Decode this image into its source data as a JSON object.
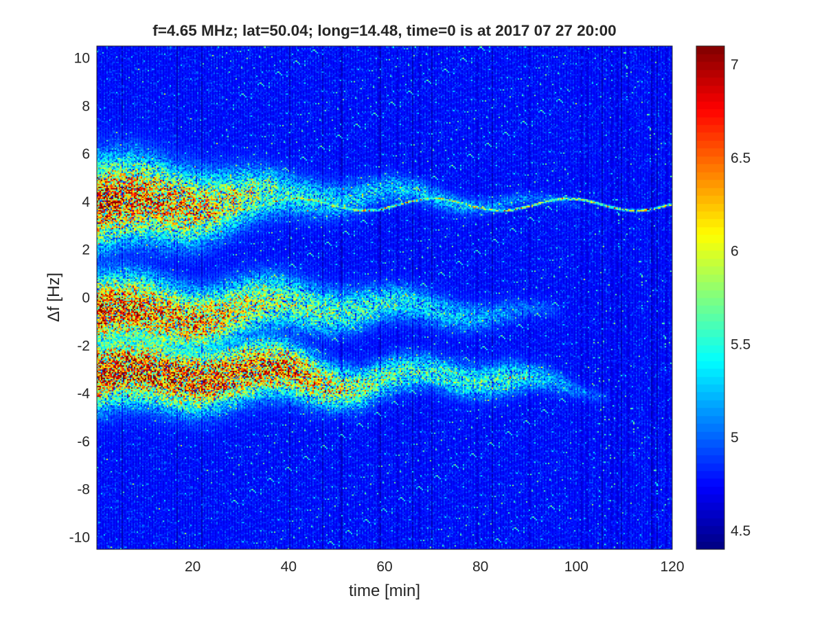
{
  "chart_data": {
    "type": "heatmap",
    "title": "f=4.65 MHz;  lat=50.04; long=14.48, time=0 is at 2017 07 27 20:00",
    "xlabel": "time [min]",
    "ylabel": "Δf [Hz]",
    "xlim": [
      0,
      120
    ],
    "ylim": [
      -10.5,
      10.5
    ],
    "xticks": [
      20,
      40,
      60,
      80,
      100,
      120
    ],
    "xtick_labels": [
      "20",
      "40",
      "60",
      "80",
      "100",
      "120"
    ],
    "yticks": [
      -10,
      -8,
      -6,
      -4,
      -2,
      0,
      2,
      4,
      6,
      8,
      10
    ],
    "ytick_labels": [
      "-10",
      "-8",
      "-6",
      "-4",
      "-2",
      "0",
      "2",
      "4",
      "6",
      "8",
      "10"
    ],
    "colormap": "jet",
    "colorbar": {
      "clim": [
        4.4,
        7.1
      ],
      "ticks": [
        4.5,
        5,
        5.5,
        6,
        6.5,
        7
      ],
      "tick_labels": [
        "4.5",
        "5",
        "5.5",
        "6",
        "6.5",
        "7"
      ]
    },
    "background_level": 4.75,
    "features": [
      {
        "name": "upper band",
        "t_start": 0,
        "t_end": 100,
        "f_center": [
          [
            0,
            3.9
          ],
          [
            20,
            4.0
          ],
          [
            40,
            4.2
          ],
          [
            60,
            4.4
          ],
          [
            80,
            4.0
          ],
          [
            100,
            3.9
          ]
        ],
        "width_hz": [
          [
            0,
            1.9
          ],
          [
            20,
            1.6
          ],
          [
            40,
            1.0
          ],
          [
            60,
            0.7
          ],
          [
            80,
            0.4
          ],
          [
            100,
            0.2
          ]
        ],
        "peak": [
          [
            0,
            7.0
          ],
          [
            20,
            6.5
          ],
          [
            40,
            5.6
          ],
          [
            60,
            5.4
          ],
          [
            80,
            5.3
          ],
          [
            100,
            5.0
          ]
        ]
      },
      {
        "name": "carrier line",
        "t_start": 30,
        "t_end": 120,
        "f_center": 3.9,
        "width_hz": 0.06,
        "peak": 6.2
      },
      {
        "name": "middle band",
        "t_start": 0,
        "t_end": 95,
        "f_center": [
          [
            0,
            -0.6
          ],
          [
            20,
            -0.8
          ],
          [
            40,
            -0.3
          ],
          [
            60,
            -0.4
          ],
          [
            80,
            -0.6
          ],
          [
            95,
            -0.7
          ]
        ],
        "width_hz": [
          [
            0,
            1.6
          ],
          [
            20,
            1.4
          ],
          [
            40,
            1.2
          ],
          [
            60,
            0.9
          ],
          [
            80,
            0.7
          ],
          [
            95,
            0.4
          ]
        ],
        "peak": [
          [
            0,
            6.9
          ],
          [
            20,
            6.6
          ],
          [
            40,
            5.9
          ],
          [
            60,
            5.6
          ],
          [
            80,
            5.3
          ],
          [
            95,
            5.0
          ]
        ]
      },
      {
        "name": "lower band",
        "t_start": 0,
        "t_end": 105,
        "f_center": [
          [
            0,
            -3.2
          ],
          [
            20,
            -3.2
          ],
          [
            40,
            -3.1
          ],
          [
            55,
            -3.7
          ],
          [
            70,
            -3.1
          ],
          [
            85,
            -3.4
          ],
          [
            105,
            -3.9
          ]
        ],
        "width_hz": [
          [
            0,
            1.5
          ],
          [
            20,
            1.4
          ],
          [
            40,
            1.2
          ],
          [
            55,
            0.9
          ],
          [
            70,
            0.8
          ],
          [
            85,
            0.8
          ],
          [
            105,
            0.3
          ]
        ],
        "peak": [
          [
            0,
            7.0
          ],
          [
            20,
            6.9
          ],
          [
            40,
            6.7
          ],
          [
            55,
            6.0
          ],
          [
            70,
            5.6
          ],
          [
            85,
            5.7
          ],
          [
            105,
            5.0
          ]
        ]
      }
    ]
  }
}
